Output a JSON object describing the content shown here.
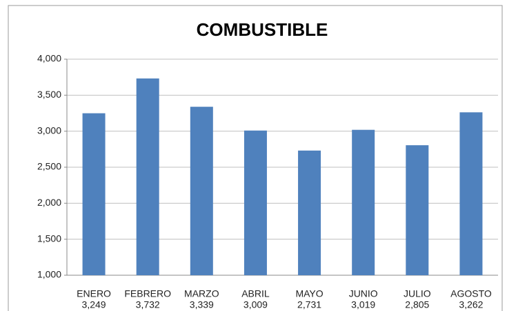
{
  "chart_data": {
    "type": "bar",
    "title": "COMBUSTIBLE",
    "categories": [
      "ENERO",
      "FEBRERO",
      "MARZO",
      "ABRIL",
      "MAYO",
      "JUNIO",
      "JULIO",
      "AGOSTO"
    ],
    "values": [
      3249,
      3732,
      3339,
      3009,
      2731,
      3019,
      2805,
      3262
    ],
    "value_labels": [
      "3,249",
      "3,732",
      "3,339",
      "3,009",
      "2,731",
      "3,019",
      "2,805",
      "3,262"
    ],
    "color": "#4f81bd",
    "ylim": [
      1000,
      4000
    ],
    "yticks": [
      {
        "value": 1000,
        "label": "1,000"
      },
      {
        "value": 1500,
        "label": "1,500"
      },
      {
        "value": 2000,
        "label": "2,000"
      },
      {
        "value": 2500,
        "label": "2,500"
      },
      {
        "value": 3000,
        "label": "3,000"
      },
      {
        "value": 3500,
        "label": "3,500"
      },
      {
        "value": 4000,
        "label": "4,000"
      }
    ],
    "grid": true
  }
}
